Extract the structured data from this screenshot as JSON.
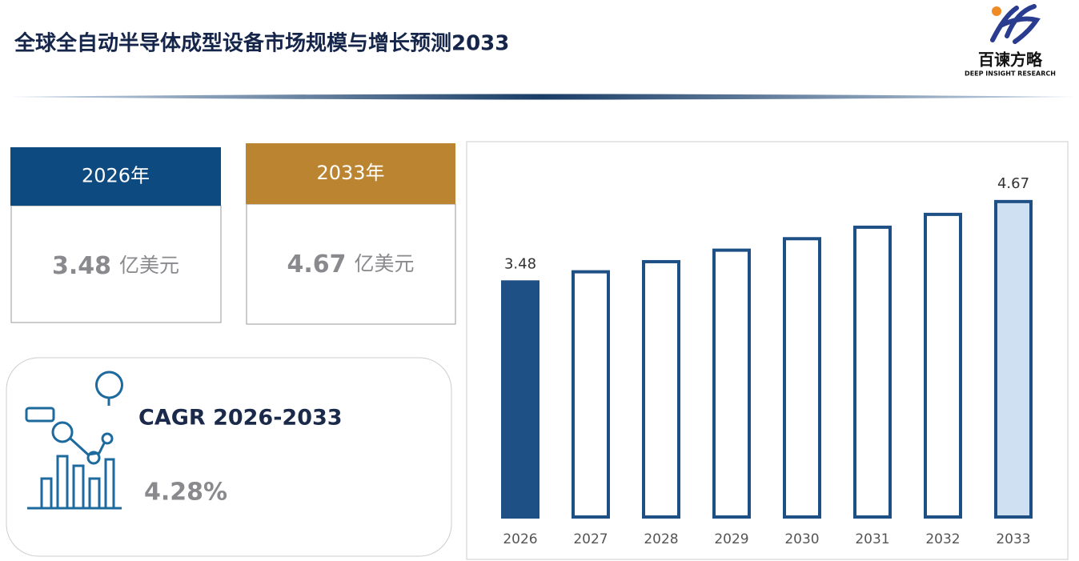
{
  "header": {
    "title": "全球全自动半导体成型设备市场规模与增长预测2033",
    "logo_name": "百谏方略",
    "logo_tagline": "DEEP INSIGHT RESEARCH"
  },
  "cards": [
    {
      "label": "2026年",
      "value": "3.48",
      "unit": "亿美元",
      "color": "#0d4a7f"
    },
    {
      "label": "2033年",
      "value": "4.67",
      "unit": "亿美元",
      "color": "#bb8430"
    }
  ],
  "cagr": {
    "label": "CAGR 2026-2033",
    "value": "4.28%"
  },
  "chart_data": {
    "type": "bar",
    "categories": [
      "2026",
      "2027",
      "2028",
      "2029",
      "2030",
      "2031",
      "2032",
      "2033"
    ],
    "values": [
      3.48,
      3.63,
      3.78,
      3.95,
      4.12,
      4.29,
      4.48,
      4.67
    ],
    "value_labels": [
      "3.48",
      null,
      null,
      null,
      null,
      null,
      null,
      "4.67"
    ],
    "bar_fills": [
      "#1f5085",
      "#ffffff",
      "#ffffff",
      "#ffffff",
      "#ffffff",
      "#ffffff",
      "#ffffff",
      "#cfe0f3"
    ],
    "edge_color": "#1f5085",
    "ylim": [
      0,
      5
    ]
  }
}
